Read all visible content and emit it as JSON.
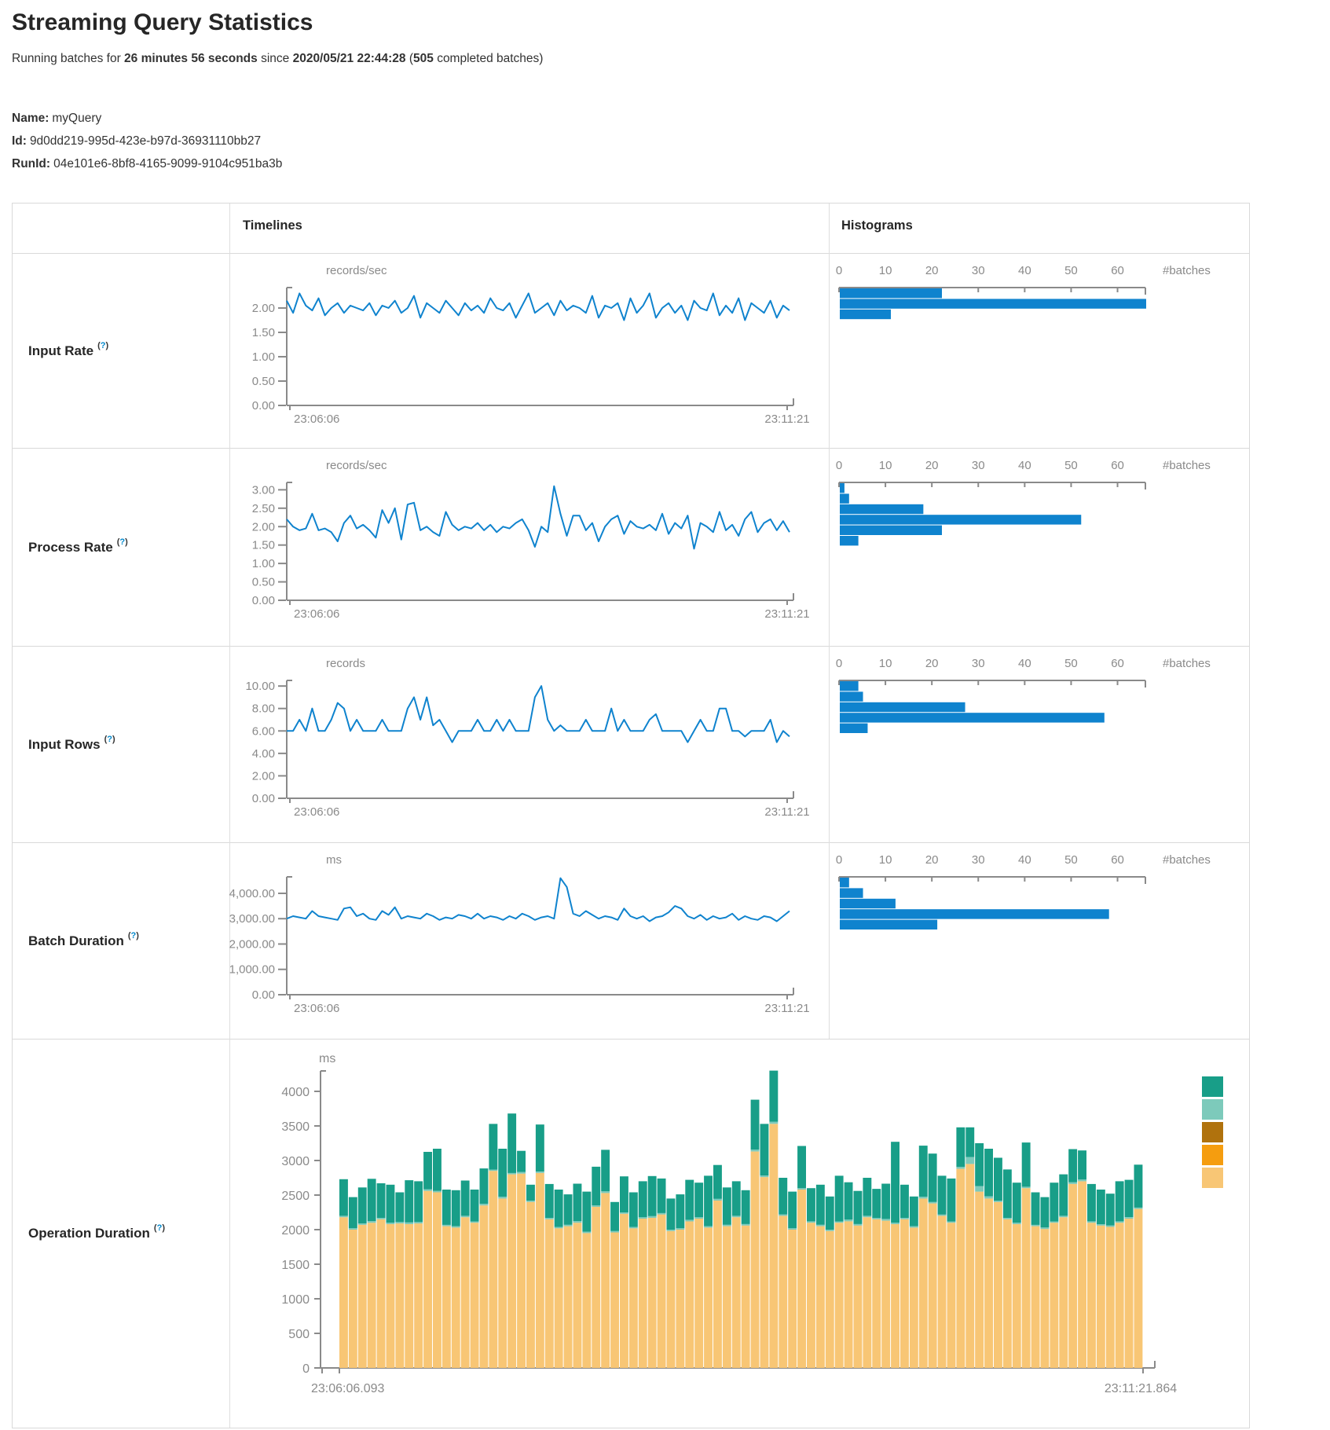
{
  "page": {
    "title": "Streaming Query Statistics",
    "subtitle": {
      "prefix": "Running batches for",
      "duration": "26 minutes 56 seconds",
      "middle": "since",
      "start_time": "2020/05/21 22:44:28",
      "paren": "(",
      "count": "505",
      "suffix": "completed batches)"
    },
    "name_label": "Name:",
    "name": "myQuery",
    "id_label": "Id:",
    "id": "9d0dd219-995d-423e-b97d-36931110bb27",
    "runid_label": "RunId:",
    "runid": "04e101e6-8bf8-4165-9099-9104c951ba3b"
  },
  "table": {
    "col_timelines": "Timelines",
    "col_histograms": "Histograms",
    "batches_label": "#batches",
    "help_open": "(",
    "help_q": "?",
    "help_close": ")"
  },
  "colors": {
    "blue": "#0f83ce",
    "axis_gray": "#8a8a8a",
    "border": "#d9d9d9",
    "teal": "#189e88",
    "light_teal": "#7dcabb",
    "dark_gold": "#b0720d",
    "orange": "#f59d0f",
    "tan": "#f8c675"
  },
  "chart_data": [
    {
      "type": "line",
      "key": "input-rate",
      "title": "Input Rate",
      "unit": "records/sec",
      "x_start_label": "23:06:06",
      "x_end_label": "23:11:21",
      "ylim": [
        0,
        2.42
      ],
      "yticks": [
        2,
        1.5,
        1,
        0.5,
        0
      ],
      "ytick_labels": [
        "2.00",
        "1.50",
        "1.00",
        "0.50",
        "0.00"
      ],
      "values": [
        2.15,
        1.9,
        2.3,
        2.05,
        1.95,
        2.2,
        1.85,
        2.0,
        2.1,
        1.9,
        2.05,
        2.0,
        1.95,
        2.1,
        1.85,
        2.05,
        2.0,
        2.15,
        1.9,
        2.0,
        2.25,
        1.8,
        2.1,
        2.0,
        1.9,
        2.15,
        2.0,
        1.85,
        2.1,
        1.95,
        2.05,
        1.9,
        2.2,
        2.0,
        1.95,
        2.1,
        1.8,
        2.05,
        2.3,
        1.9,
        2.0,
        2.1,
        1.85,
        2.15,
        1.95,
        2.05,
        2.0,
        1.9,
        2.25,
        1.8,
        2.05,
        2.0,
        2.1,
        1.75,
        2.2,
        1.9,
        2.05,
        2.3,
        1.8,
        2.0,
        2.1,
        1.9,
        2.05,
        1.75,
        2.15,
        2.0,
        1.95,
        2.3,
        1.85,
        2.05,
        1.9,
        2.2,
        1.75,
        2.1,
        2.0,
        1.9,
        2.15,
        1.8,
        2.05,
        1.95
      ],
      "histogram": {
        "xticks": [
          0,
          10,
          20,
          30,
          40,
          50,
          60
        ],
        "xtick_labels": [
          "0",
          "10",
          "20",
          "30",
          "40",
          "50",
          "60"
        ],
        "xmax": 66,
        "counts": [
          22,
          66,
          11
        ]
      }
    },
    {
      "type": "line",
      "key": "process-rate",
      "title": "Process Rate",
      "unit": "records/sec",
      "x_start_label": "23:06:06",
      "x_end_label": "23:11:21",
      "ylim": [
        0,
        3.2
      ],
      "yticks": [
        3,
        2.5,
        2,
        1.5,
        1,
        0.5,
        0
      ],
      "ytick_labels": [
        "3.00",
        "2.50",
        "2.00",
        "1.50",
        "1.00",
        "0.50",
        "0.00"
      ],
      "values": [
        2.2,
        2.0,
        1.9,
        1.95,
        2.35,
        1.9,
        1.95,
        1.85,
        1.6,
        2.1,
        2.3,
        1.95,
        2.05,
        1.9,
        1.7,
        2.45,
        2.1,
        2.5,
        1.65,
        2.6,
        2.65,
        1.9,
        2.0,
        1.85,
        1.75,
        2.4,
        2.05,
        1.9,
        2.0,
        1.95,
        2.1,
        1.9,
        2.05,
        1.85,
        2.0,
        1.95,
        2.1,
        2.2,
        1.9,
        1.45,
        2.0,
        1.85,
        3.1,
        2.35,
        1.75,
        2.3,
        2.3,
        1.9,
        2.1,
        1.6,
        2.0,
        2.2,
        2.3,
        1.8,
        2.15,
        2.0,
        1.95,
        2.05,
        1.9,
        2.35,
        1.8,
        2.1,
        1.95,
        2.3,
        1.4,
        2.1,
        2.0,
        1.85,
        2.4,
        1.9,
        2.05,
        1.75,
        2.2,
        2.4,
        1.85,
        2.1,
        2.2,
        1.9,
        2.15,
        1.85
      ],
      "histogram": {
        "xticks": [
          0,
          10,
          20,
          30,
          40,
          50,
          60
        ],
        "xtick_labels": [
          "0",
          "10",
          "20",
          "30",
          "40",
          "50",
          "60"
        ],
        "xmax": 66,
        "counts": [
          1,
          2,
          18,
          52,
          22,
          4
        ]
      }
    },
    {
      "type": "line",
      "key": "input-rows",
      "title": "Input Rows",
      "unit": "records",
      "x_start_label": "23:06:06",
      "x_end_label": "23:11:21",
      "ylim": [
        0,
        10.5
      ],
      "yticks": [
        10,
        8,
        6,
        4,
        2,
        0
      ],
      "ytick_labels": [
        "10.00",
        "8.00",
        "6.00",
        "4.00",
        "2.00",
        "0.00"
      ],
      "values": [
        6,
        6,
        7,
        6,
        8,
        6,
        6,
        7,
        8.5,
        8,
        6,
        7,
        6,
        6,
        6,
        7,
        6,
        6,
        6,
        8,
        9,
        7,
        9,
        6.5,
        7,
        6,
        5,
        6,
        6,
        6,
        7,
        6,
        6,
        7,
        6,
        7,
        6,
        6,
        6,
        9,
        10,
        7,
        6,
        6.5,
        6,
        6,
        6,
        7,
        6,
        6,
        6,
        8,
        6,
        7,
        6,
        6,
        6,
        7,
        7.5,
        6,
        6,
        6,
        6,
        5,
        6,
        7,
        6,
        6,
        8,
        8,
        6,
        6,
        5.5,
        6,
        6,
        6,
        7,
        5,
        6,
        5.5
      ],
      "histogram": {
        "xticks": [
          0,
          10,
          20,
          30,
          40,
          50,
          60
        ],
        "xtick_labels": [
          "0",
          "10",
          "20",
          "30",
          "40",
          "50",
          "60"
        ],
        "xmax": 66,
        "counts": [
          4,
          5,
          27,
          57,
          6
        ]
      }
    },
    {
      "type": "line",
      "key": "batch-duration",
      "title": "Batch Duration",
      "unit": "ms",
      "x_start_label": "23:06:06",
      "x_end_label": "23:11:21",
      "ylim": [
        0,
        4650
      ],
      "yticks": [
        4000,
        3000,
        2000,
        1000,
        0
      ],
      "ytick_labels": [
        "4,000.00",
        "3,000.00",
        "2,000.00",
        "1,000.00",
        "0.00"
      ],
      "values": [
        3000,
        3100,
        3050,
        3000,
        3300,
        3100,
        3050,
        3000,
        2950,
        3400,
        3450,
        3100,
        3200,
        3000,
        2950,
        3300,
        3150,
        3450,
        3000,
        3100,
        3050,
        3000,
        3200,
        3100,
        2950,
        3050,
        3000,
        3150,
        3100,
        3000,
        3200,
        3000,
        3100,
        3050,
        2950,
        3100,
        3000,
        3200,
        3100,
        2950,
        3050,
        3100,
        3000,
        4600,
        4250,
        3200,
        3100,
        3300,
        3150,
        3000,
        3100,
        3050,
        2950,
        3400,
        3100,
        3000,
        3100,
        2900,
        3050,
        3100,
        3250,
        3500,
        3400,
        3100,
        3000,
        3150,
        2950,
        3100,
        3000,
        3050,
        3200,
        2950,
        3100,
        3000,
        2950,
        3100,
        3050,
        2900,
        3100,
        3300
      ],
      "histogram": {
        "xticks": [
          0,
          10,
          20,
          30,
          40,
          50,
          60
        ],
        "xtick_labels": [
          "0",
          "10",
          "20",
          "30",
          "40",
          "50",
          "60"
        ],
        "xmax": 66,
        "counts": [
          2,
          5,
          12,
          58,
          21
        ]
      }
    },
    {
      "type": "stacked-bar",
      "key": "operation-duration",
      "title": "Operation Duration",
      "unit": "ms",
      "x_start_label": "23:06:06.093",
      "x_end_label": "23:11:21.864",
      "ylim": [
        0,
        4300
      ],
      "yticks": [
        4000,
        3500,
        3000,
        2500,
        2000,
        1500,
        1000,
        500,
        0
      ],
      "ytick_labels": [
        "4000",
        "3500",
        "3000",
        "2500",
        "2000",
        "1500",
        "1000",
        "500",
        "0"
      ],
      "series_colors_bottom_to_top": [
        "#f8c675",
        "#7dcabb",
        "#189e88"
      ],
      "legend_colors_top_to_bottom": [
        "#189e88",
        "#7dcabb",
        "#b0720d",
        "#f59d0f",
        "#f8c675"
      ],
      "bars": [
        [
          2180,
          20,
          530
        ],
        [
          2000,
          20,
          450
        ],
        [
          2070,
          20,
          520
        ],
        [
          2100,
          25,
          610
        ],
        [
          2150,
          20,
          500
        ],
        [
          2080,
          20,
          550
        ],
        [
          2090,
          20,
          430
        ],
        [
          2080,
          25,
          610
        ],
        [
          2090,
          20,
          590
        ],
        [
          2560,
          25,
          540
        ],
        [
          2540,
          20,
          610
        ],
        [
          2050,
          20,
          510
        ],
        [
          2030,
          20,
          520
        ],
        [
          2180,
          20,
          510
        ],
        [
          2100,
          20,
          460
        ],
        [
          2350,
          25,
          510
        ],
        [
          2850,
          20,
          660
        ],
        [
          2450,
          25,
          695
        ],
        [
          2800,
          20,
          860
        ],
        [
          2810,
          25,
          305
        ],
        [
          2400,
          20,
          230
        ],
        [
          2820,
          20,
          680
        ],
        [
          2150,
          20,
          490
        ],
        [
          2020,
          20,
          540
        ],
        [
          2050,
          20,
          440
        ],
        [
          2100,
          25,
          540
        ],
        [
          1950,
          20,
          580
        ],
        [
          2330,
          20,
          560
        ],
        [
          2530,
          25,
          600
        ],
        [
          1960,
          20,
          420
        ],
        [
          2230,
          20,
          520
        ],
        [
          2020,
          20,
          500
        ],
        [
          2160,
          20,
          520
        ],
        [
          2170,
          25,
          580
        ],
        [
          2220,
          20,
          500
        ],
        [
          1980,
          20,
          450
        ],
        [
          2000,
          20,
          490
        ],
        [
          2120,
          20,
          580
        ],
        [
          2160,
          20,
          500
        ],
        [
          2030,
          20,
          730
        ],
        [
          2420,
          25,
          490
        ],
        [
          2050,
          20,
          540
        ],
        [
          2180,
          20,
          500
        ],
        [
          2060,
          20,
          490
        ],
        [
          3130,
          30,
          720
        ],
        [
          2760,
          25,
          745
        ],
        [
          3530,
          30,
          740
        ],
        [
          2200,
          20,
          530
        ],
        [
          2000,
          20,
          530
        ],
        [
          2580,
          20,
          610
        ],
        [
          2100,
          20,
          480
        ],
        [
          2050,
          20,
          580
        ],
        [
          1980,
          20,
          480
        ],
        [
          2100,
          20,
          660
        ],
        [
          2120,
          25,
          540
        ],
        [
          2060,
          20,
          480
        ],
        [
          2180,
          20,
          550
        ],
        [
          2150,
          20,
          420
        ],
        [
          2130,
          25,
          510
        ],
        [
          2080,
          20,
          1170
        ],
        [
          2150,
          20,
          480
        ],
        [
          2030,
          20,
          430
        ],
        [
          2450,
          25,
          740
        ],
        [
          2380,
          20,
          700
        ],
        [
          2200,
          20,
          560
        ],
        [
          2100,
          20,
          620
        ],
        [
          2880,
          30,
          570
        ],
        [
          2950,
          100,
          430
        ],
        [
          2550,
          80,
          620
        ],
        [
          2450,
          30,
          690
        ],
        [
          2400,
          20,
          620
        ],
        [
          2150,
          20,
          700
        ],
        [
          2080,
          20,
          580
        ],
        [
          2600,
          20,
          640
        ],
        [
          2050,
          20,
          470
        ],
        [
          2010,
          20,
          440
        ],
        [
          2100,
          20,
          560
        ],
        [
          2180,
          20,
          600
        ],
        [
          2660,
          25,
          480
        ],
        [
          2700,
          25,
          420
        ],
        [
          2100,
          20,
          540
        ],
        [
          2060,
          20,
          500
        ],
        [
          2040,
          20,
          460
        ],
        [
          2100,
          20,
          580
        ],
        [
          2160,
          20,
          540
        ],
        [
          2300,
          20,
          620
        ]
      ]
    }
  ]
}
